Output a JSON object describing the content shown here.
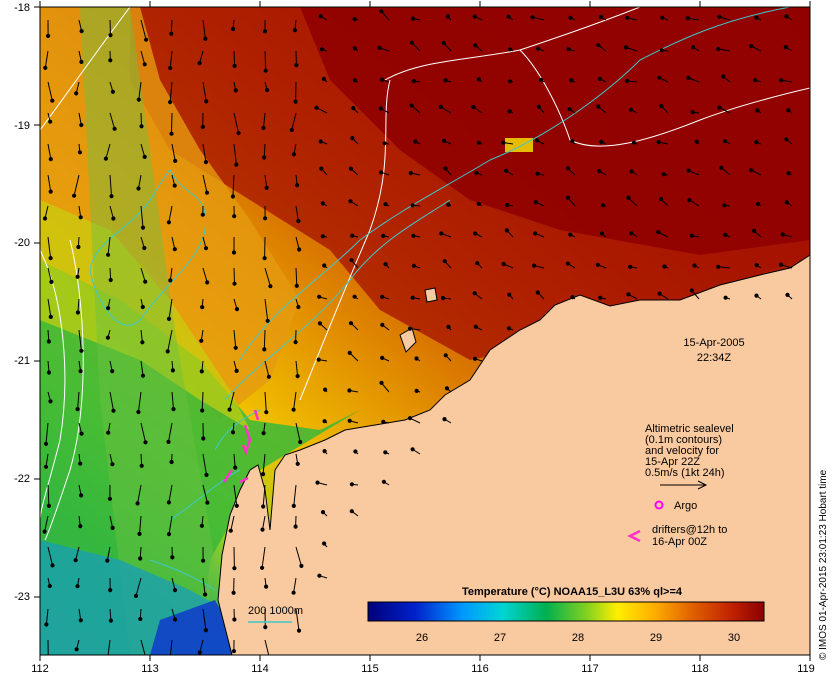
{
  "map": {
    "lon_ticks": [
      "112",
      "113",
      "114",
      "115",
      "116",
      "117",
      "118",
      "119"
    ],
    "lat_ticks": [
      "-18",
      "-19",
      "-20",
      "-21",
      "-22",
      "-23"
    ],
    "date": "15-Apr-2005",
    "time": "22:34Z"
  },
  "legend": {
    "sealevel": [
      "Altimetric sealevel",
      "(0.1m contours)",
      "and velocity for",
      "15-Apr 22Z",
      "0.5m/s (1kt 24h)"
    ],
    "argo": "Argo",
    "drifters": [
      "drifters@12h to",
      "16-Apr 00Z"
    ],
    "isobath": "200  1000m"
  },
  "colorbar": {
    "title": "Temperature (°C) NOAA15_L3U 63% ql>=4",
    "ticks": [
      "26",
      "27",
      "28",
      "29",
      "30"
    ]
  },
  "credit": "© IMOS 01-Apr-2015 23:01:23 Hobart time",
  "colors": {
    "land": "#f9c9a0",
    "contour": "#ffffff",
    "isobath": "#3fc9c9",
    "argo": "#ff00ff",
    "drifter": "#ff33cc"
  }
}
